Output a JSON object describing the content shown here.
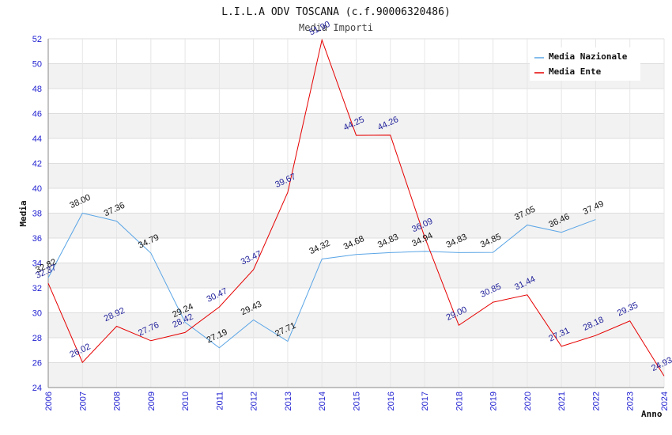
{
  "chart_data": {
    "type": "line",
    "title": "L.I.L.A ODV TOSCANA (c.f.90006320486)",
    "subtitle": "Media Importi",
    "ylabel": "Media",
    "xlabel": "Anno",
    "ylim": [
      24,
      52
    ],
    "yticks": [
      "24",
      "26",
      "28",
      "30",
      "32",
      "34",
      "36",
      "38",
      "40",
      "42",
      "44",
      "46",
      "48",
      "50",
      "52"
    ],
    "x": [
      "2006",
      "2007",
      "2008",
      "2009",
      "2010",
      "2011",
      "2012",
      "2013",
      "2014",
      "2015",
      "2016",
      "2017",
      "2018",
      "2019",
      "2020",
      "2021",
      "2022",
      "2023",
      "2024"
    ],
    "legend_position": "top-right",
    "series": [
      {
        "name": "Media Nazionale",
        "color": "#5aa5e6",
        "values": [
          32.82,
          38.0,
          37.36,
          34.79,
          29.24,
          27.19,
          29.43,
          27.71,
          34.32,
          34.68,
          34.83,
          34.94,
          34.83,
          34.85,
          37.05,
          36.46,
          37.49,
          null,
          null
        ],
        "labels": [
          "32.82",
          "38.00",
          "37.36",
          "34.79",
          "29.24",
          "27.19",
          "29.43",
          "27.71",
          "34.32",
          "34.68",
          "34.83",
          "34.94",
          "34.83",
          "34.85",
          "37.05",
          "36.46",
          "37.49",
          "",
          ""
        ]
      },
      {
        "name": "Media Ente",
        "color": "#e60000",
        "values": [
          32.37,
          26.02,
          28.92,
          27.76,
          28.42,
          30.47,
          33.47,
          39.67,
          51.9,
          44.25,
          44.26,
          36.09,
          29.0,
          30.85,
          31.44,
          27.31,
          28.18,
          29.35,
          24.93
        ],
        "labels": [
          "32.37",
          "26.02",
          "28.92",
          "27.76",
          "28.42",
          "30.47",
          "33.47",
          "39.67",
          "51.90",
          "44.25",
          "44.26",
          "36.09",
          "29.00",
          "30.85",
          "31.44",
          "27.31",
          "28.18",
          "29.35",
          "24.93"
        ]
      }
    ]
  }
}
